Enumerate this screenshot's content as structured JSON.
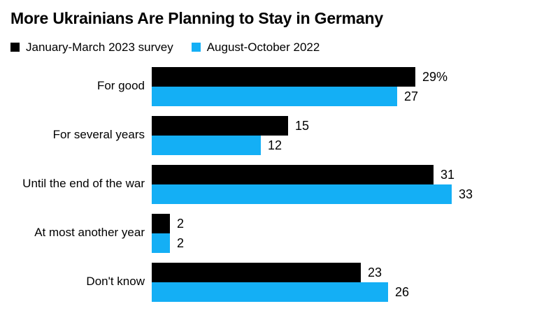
{
  "header": {
    "title": "More Ukrainians Are Planning to Stay in Germany"
  },
  "legend": {
    "items": [
      {
        "label": "January-March 2023 survey",
        "color": "#000000"
      },
      {
        "label": "August-October 2022",
        "color": "#14aff5"
      }
    ]
  },
  "chart_data": {
    "type": "bar",
    "orientation": "horizontal",
    "title": "More Ukrainians Are Planning to Stay in Germany",
    "categories": [
      "For good",
      "For several years",
      "Until the end of the war",
      "At most another year",
      "Don't know"
    ],
    "series": [
      {
        "name": "January-March 2023 survey",
        "color": "#000000",
        "values": [
          29,
          15,
          31,
          2,
          23
        ],
        "value_labels": [
          "29%",
          "15",
          "31",
          "2",
          "23"
        ]
      },
      {
        "name": "August-October 2022",
        "color": "#14aff5",
        "values": [
          27,
          12,
          33,
          2,
          26
        ],
        "value_labels": [
          "27",
          "12",
          "33",
          "2",
          "26"
        ]
      }
    ],
    "xlim": [
      0,
      33
    ],
    "axis_ticks": "none",
    "grid": false,
    "legend_position": "top",
    "value_labels_shown": true
  }
}
